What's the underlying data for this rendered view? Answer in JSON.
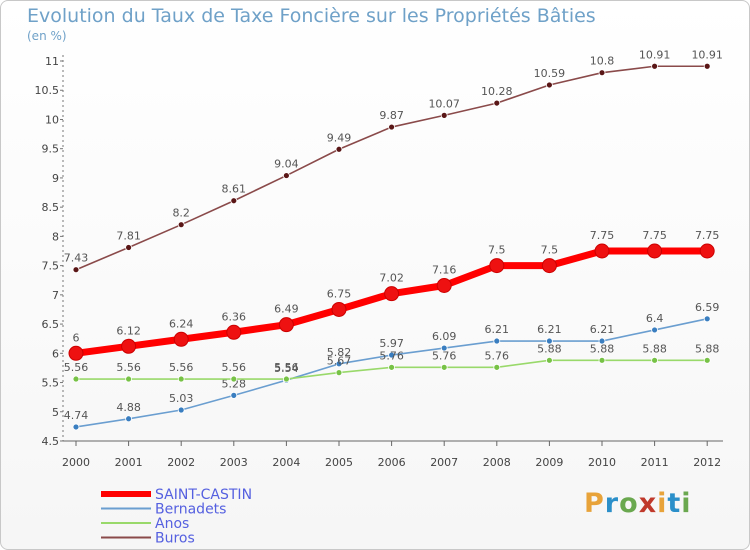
{
  "header": {
    "title": "Evolution du Taux de Taxe Foncière sur les Propriétés Bâties",
    "subtitle": "(en %)"
  },
  "logo": {
    "text": "Proxiti",
    "colors": [
      "#e8a33a",
      "#2b8fc9",
      "#6aa84f",
      "#c0392b",
      "#e8a33a",
      "#2b8fc9",
      "#6aa84f"
    ]
  },
  "chart_data": {
    "type": "line",
    "x": [
      "2000",
      "2001",
      "2002",
      "2003",
      "2004",
      "2005",
      "2006",
      "2007",
      "2008",
      "2009",
      "2010",
      "2011",
      "2012"
    ],
    "ylim": [
      4.5,
      11
    ],
    "yticks": [
      "4.5",
      "5",
      "5.5",
      "6",
      "6.5",
      "7",
      "7.5",
      "8",
      "8.5",
      "9",
      "9.5",
      "10",
      "10.5",
      "11"
    ],
    "grid": false,
    "legend_position": "bottom-left",
    "series": [
      {
        "name": "SAINT-CASTIN",
        "color": "#ff0000",
        "marker": "#ee1111",
        "bold": true,
        "values": [
          6,
          6.12,
          6.24,
          6.36,
          6.49,
          6.75,
          7.02,
          7.16,
          7.5,
          7.5,
          7.75,
          7.75,
          7.75
        ],
        "labels": [
          "6",
          "6.12",
          "6.24",
          "6.36",
          "6.49",
          "6.75",
          "7.02",
          "7.16",
          "7.5",
          "7.5",
          "7.75",
          "7.75",
          "7.75"
        ]
      },
      {
        "name": "Bernadets",
        "color": "#6a9ed0",
        "marker": "#3a7ec0",
        "bold": false,
        "values": [
          4.74,
          4.88,
          5.03,
          5.28,
          5.54,
          5.82,
          5.97,
          6.09,
          6.21,
          6.21,
          6.21,
          6.4,
          6.59
        ],
        "labels": [
          "4.74",
          "4.88",
          "5.03",
          "5.28",
          "5.54",
          "5.82",
          "5.97",
          "6.09",
          "6.21",
          "6.21",
          "6.21",
          "6.4",
          "6.59"
        ]
      },
      {
        "name": "Anos",
        "color": "#99d96a",
        "marker": "#77c246",
        "bold": false,
        "values": [
          5.56,
          5.56,
          5.56,
          5.56,
          5.56,
          5.67,
          5.76,
          5.76,
          5.76,
          5.88,
          5.88,
          5.88,
          5.88
        ],
        "labels": [
          "5.56",
          "5.56",
          "5.56",
          "5.56",
          "5.56",
          "5.67",
          "5.76",
          "5.76",
          "5.76",
          "5.88",
          "5.88",
          "5.88",
          "5.88"
        ]
      },
      {
        "name": "Buros",
        "color": "#8a4a4a",
        "marker": "#5a1616",
        "bold": false,
        "values": [
          7.43,
          7.81,
          8.2,
          8.61,
          9.04,
          9.49,
          9.87,
          10.07,
          10.28,
          10.59,
          10.8,
          10.91,
          10.91
        ],
        "labels": [
          "7.43",
          "7.81",
          "8.2",
          "8.61",
          "9.04",
          "9.49",
          "9.87",
          "10.07",
          "10.28",
          "10.59",
          "10.8",
          "10.91",
          "10.91"
        ]
      }
    ]
  }
}
